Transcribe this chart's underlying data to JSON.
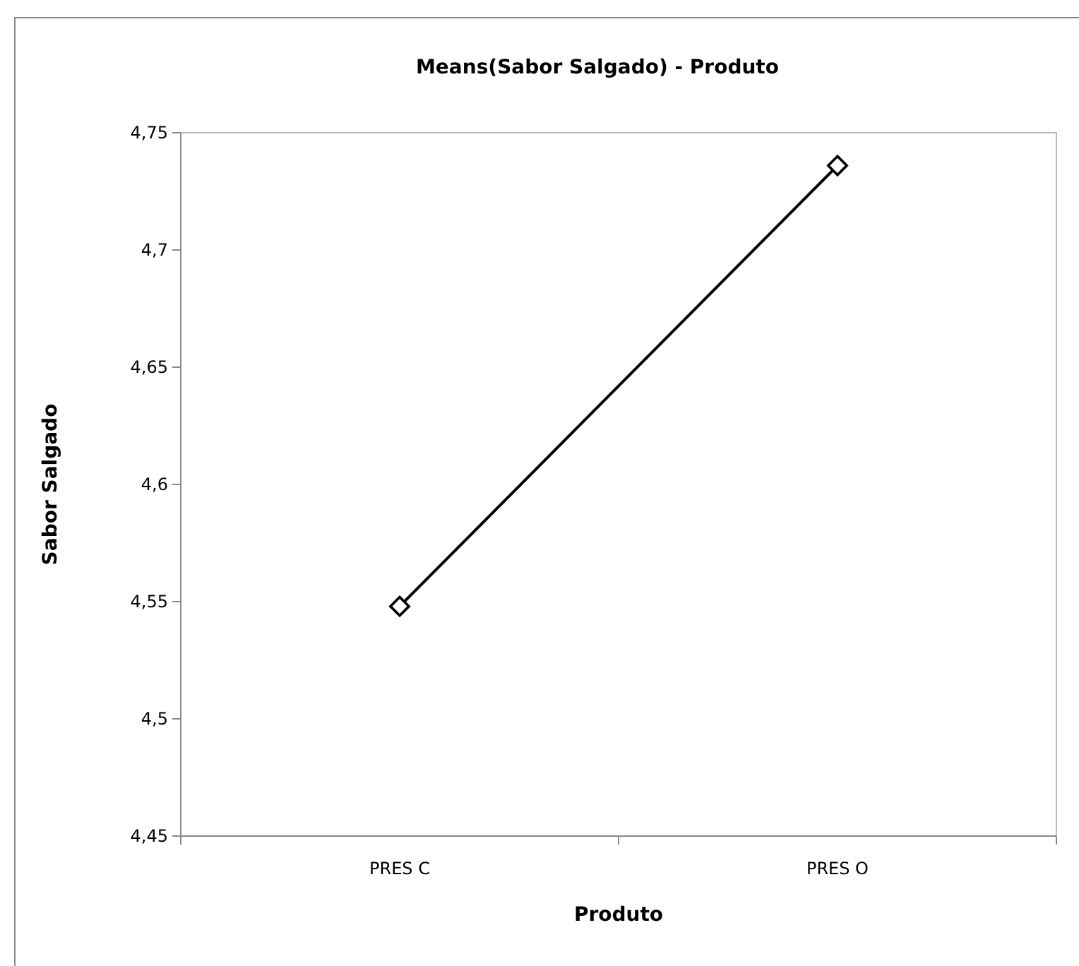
{
  "chart_data": {
    "type": "line",
    "title": "Means(Sabor Salgado) - Produto",
    "xlabel": "Produto",
    "ylabel": "Sabor Salgado",
    "categories": [
      "PRES C",
      "PRES O"
    ],
    "series": [
      {
        "color": "#000000",
        "values": [
          4.548,
          4.736
        ]
      }
    ],
    "ylim": [
      4.45,
      4.75
    ],
    "yticks": [
      {
        "value": 4.45,
        "label": "4,45"
      },
      {
        "value": 4.5,
        "label": "4,5"
      },
      {
        "value": 4.55,
        "label": "4,55"
      },
      {
        "value": 4.6,
        "label": "4,6"
      },
      {
        "value": 4.65,
        "label": "4,65"
      },
      {
        "value": 4.7,
        "label": "4,7"
      },
      {
        "value": 4.75,
        "label": "4,75"
      }
    ],
    "marker": "diamond",
    "line_style": "solid",
    "grid": false
  }
}
